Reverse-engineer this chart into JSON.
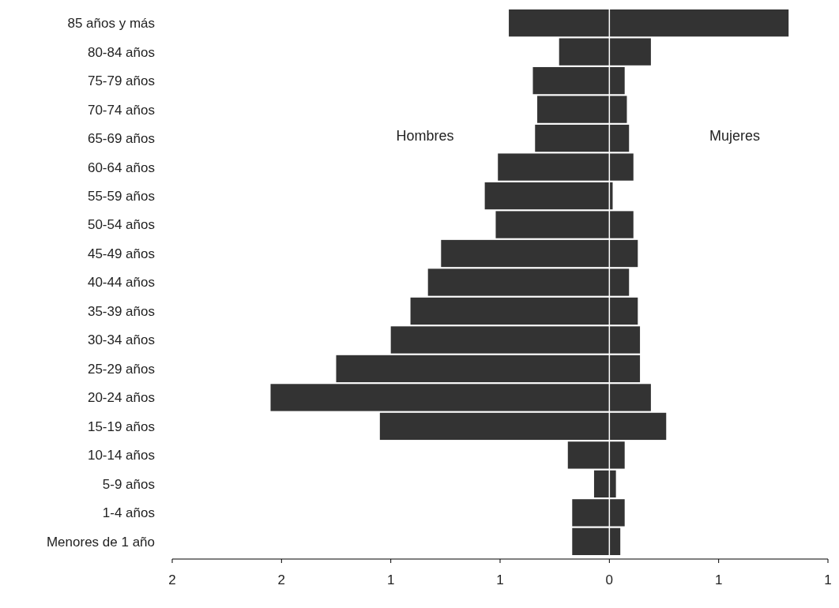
{
  "chart_data": {
    "type": "bar",
    "orientation": "horizontal",
    "stacked": true,
    "categories": [
      "85 años y más",
      "80-84 años",
      "75-79 años",
      "70-74 años",
      "65-69 años",
      "60-64 años",
      "55-59 años",
      "50-54 años",
      "45-49 años",
      "40-44 años",
      "35-39 años",
      "30-34 años",
      "25-29 años",
      "20-24 años",
      "15-19 años",
      "10-14 años",
      "5-9 años",
      "1-4 años",
      "Menores de 1 año"
    ],
    "series": [
      {
        "color": "#333333",
        "values": [
          -0.46,
          -0.23,
          -0.35,
          -0.33,
          -0.34,
          -0.51,
          -0.57,
          -0.52,
          -0.77,
          -0.83,
          -0.91,
          -1.0,
          -1.25,
          -1.55,
          -1.05,
          -0.19,
          -0.07,
          -0.17,
          -0.17
        ]
      },
      {
        "color": "#333333",
        "values": [
          0.82,
          0.19,
          0.07,
          0.08,
          0.09,
          0.11,
          0.015,
          0.11,
          0.13,
          0.09,
          0.13,
          0.14,
          0.14,
          0.19,
          0.26,
          0.07,
          0.03,
          0.07,
          0.05
        ]
      }
    ],
    "annotations": [
      "Hombres",
      "Mujeres"
    ],
    "xlim": [
      -2,
      1
    ],
    "xticks": [
      {
        "value": -2,
        "label": "2"
      },
      {
        "value": -1.5,
        "label": "2"
      },
      {
        "value": -1,
        "label": "1"
      },
      {
        "value": -0.5,
        "label": "1"
      },
      0,
      {
        "value": 0.5,
        "label": "1"
      },
      {
        "value": 1,
        "label": "1"
      }
    ]
  }
}
